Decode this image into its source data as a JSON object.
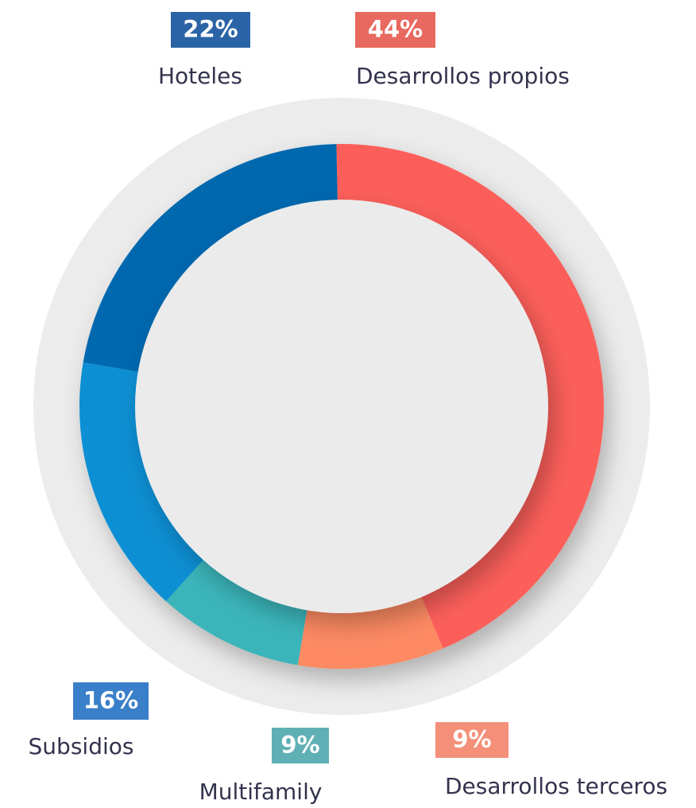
{
  "chart_data": {
    "type": "donut",
    "categories": [
      "Desarrollos propios",
      "Desarrollos terceros",
      "Multifamily",
      "Subsidios",
      "Hoteles"
    ],
    "values": [
      44,
      9,
      9,
      16,
      22
    ],
    "value_labels": [
      "44%",
      "9%",
      "9%",
      "16%",
      "22%"
    ],
    "colors": [
      "#fc5f5a",
      "#fd8a63",
      "#3bb5ba",
      "#078fd3",
      "#0567af"
    ],
    "label_colors": [
      "#e8695f",
      "#f4907a",
      "#5fb0b4",
      "#3a7fc9",
      "#2b64a6"
    ]
  }
}
